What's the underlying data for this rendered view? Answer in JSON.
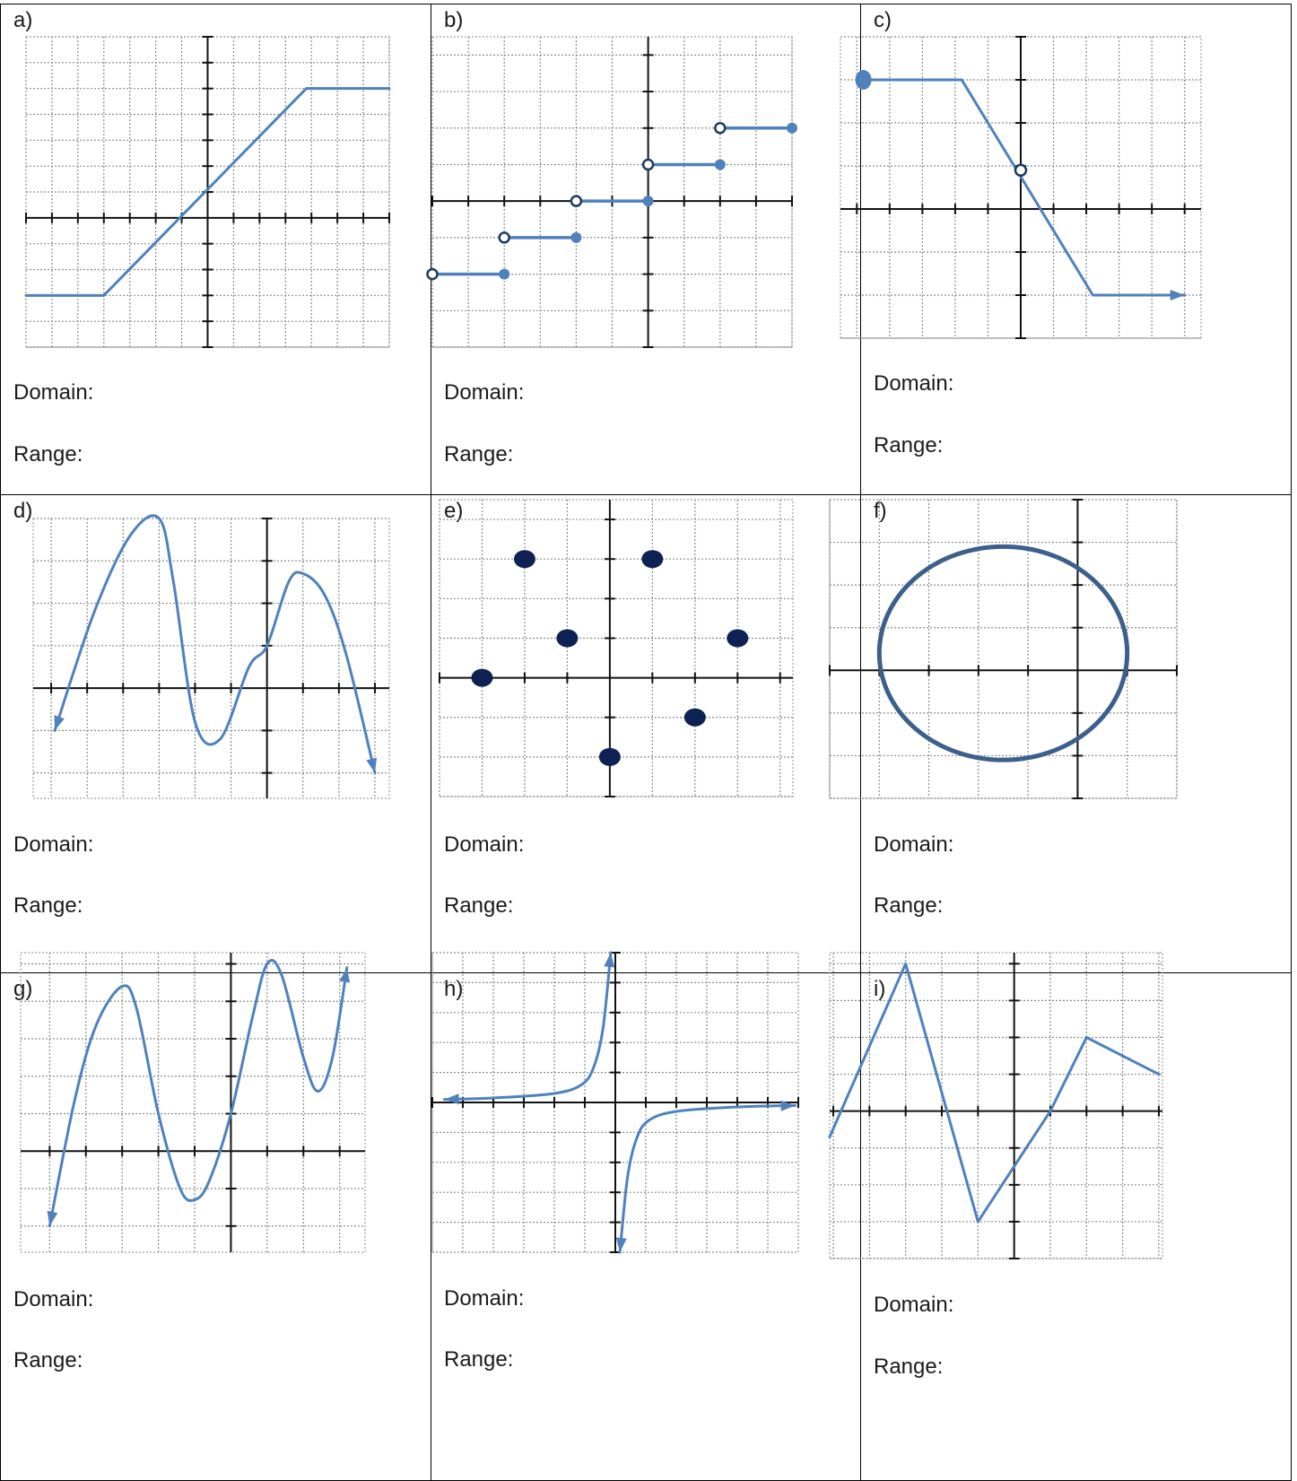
{
  "worksheet": {
    "domain_label": "Domain:",
    "range_label": "Range:",
    "colors": {
      "curve": "#4f81bd",
      "dark_point": "#0d2153",
      "circle": "#3c5f8c",
      "open_ring": "#1f3a5c"
    },
    "problems": [
      {
        "letter": "a)",
        "chart_data": {
          "type": "line",
          "xlim": [
            -7,
            7
          ],
          "ylim": [
            -5,
            7
          ],
          "grid": true,
          "series": [
            {
              "points": [
                [
                  -7,
                  -3
                ],
                [
                  -4,
                  -3
                ],
                [
                  3.8,
                  5
                ],
                [
                  7,
                  5
                ]
              ]
            }
          ]
        }
      },
      {
        "letter": "b)",
        "chart_data": {
          "type": "step",
          "xlim": [
            -6,
            4
          ],
          "ylim": [
            -4,
            4.5
          ],
          "grid": true,
          "steps": [
            {
              "x": [
                -6,
                -4
              ],
              "y": -2,
              "open_left": true,
              "closed_right": true
            },
            {
              "x": [
                -4,
                -2
              ],
              "y": -1,
              "open_left": true,
              "closed_right": true
            },
            {
              "x": [
                -2,
                0
              ],
              "y": 0,
              "open_left": true,
              "closed_right": true
            },
            {
              "x": [
                0,
                2
              ],
              "y": 1,
              "open_left": true,
              "closed_right": true
            },
            {
              "x": [
                2,
                4
              ],
              "y": 2,
              "open_left": true,
              "closed_right": true
            }
          ]
        }
      },
      {
        "letter": "c)",
        "chart_data": {
          "type": "line",
          "xlim": [
            -5.5,
            5.5
          ],
          "ylim": [
            -3,
            4
          ],
          "grid": true,
          "series": [
            {
              "points": [
                [
                  -4.8,
                  3
                ],
                [
                  -1.8,
                  3
                ],
                [
                  2.2,
                  -2
                ],
                [
                  5.0,
                  -2
                ]
              ],
              "end_arrow": true
            }
          ],
          "closed_points": [
            [
              -4.8,
              3
            ]
          ],
          "open_points": [
            [
              0,
              0.9
            ]
          ]
        }
      },
      {
        "letter": "d)",
        "chart_data": {
          "type": "line",
          "xlim": [
            -6.5,
            3.4
          ],
          "ylim": [
            -2.6,
            4
          ],
          "grid": true,
          "series": [
            {
              "points": [
                [
                  -5.9,
                  -1
                ],
                [
                  -4.8,
                  1.8
                ],
                [
                  -3.8,
                  3.6
                ],
                [
                  -3.0,
                  4.0
                ],
                [
                  -2.6,
                  2.5
                ],
                [
                  -2.0,
                  -0.8
                ],
                [
                  -1.3,
                  -1.2
                ],
                [
                  -0.5,
                  0.5
                ],
                [
                  0,
                  1.0
                ],
                [
                  0.6,
                  2.5
                ],
                [
                  1.0,
                  2.7
                ],
                [
                  1.6,
                  2.2
                ],
                [
                  2.2,
                  0.8
                ],
                [
                  3.0,
                  -2.0
                ]
              ],
              "start_arrow": true,
              "end_arrow": true
            }
          ]
        }
      },
      {
        "letter": "e)",
        "chart_data": {
          "type": "scatter",
          "xlim": [
            -4,
            4.3
          ],
          "ylim": [
            -3,
            4.5
          ],
          "grid": true,
          "points": [
            [
              -3,
              0
            ],
            [
              -2,
              3
            ],
            [
              -1,
              1
            ],
            [
              1,
              3
            ],
            [
              3,
              1
            ],
            [
              2,
              -1
            ],
            [
              0,
              -2
            ]
          ]
        }
      },
      {
        "letter": "f)",
        "chart_data": {
          "type": "circle",
          "xlim": [
            -5,
            2
          ],
          "ylim": [
            -3,
            4
          ],
          "grid": true,
          "center": [
            -1.5,
            0.4
          ],
          "radius": 2.5
        }
      },
      {
        "letter": "g)",
        "chart_data": {
          "type": "line",
          "xlim": [
            -5.8,
            3.7
          ],
          "ylim": [
            -2.7,
            5.3
          ],
          "grid": true,
          "series": [
            {
              "points": [
                [
                  -5,
                  -2
                ],
                [
                  -4.3,
                  1.4
                ],
                [
                  -3.7,
                  3.4
                ],
                [
                  -3.0,
                  4.4
                ],
                [
                  -2.6,
                  3.8
                ],
                [
                  -2.0,
                  1.0
                ],
                [
                  -1.4,
                  -1.0
                ],
                [
                  -1.0,
                  -1.3
                ],
                [
                  -0.6,
                  -0.8
                ],
                [
                  0,
                  1.0
                ],
                [
                  0.6,
                  3.6
                ],
                [
                  1.0,
                  5.0
                ],
                [
                  1.4,
                  4.7
                ],
                [
                  2.0,
                  2.5
                ],
                [
                  2.4,
                  1.6
                ],
                [
                  2.8,
                  2.5
                ],
                [
                  3.2,
                  4.9
                ]
              ],
              "start_arrow": true,
              "end_arrow": true
            }
          ]
        }
      },
      {
        "letter": "h)",
        "chart_data": {
          "type": "line",
          "xlim": [
            -6,
            6
          ],
          "ylim": [
            -5,
            5
          ],
          "grid": true,
          "series": [
            {
              "points": [
                [
                  -5.6,
                  0.1
                ],
                [
                  -4,
                  0.15
                ],
                [
                  -2,
                  0.3
                ],
                [
                  -1.1,
                  0.6
                ],
                [
                  -0.7,
                  1.2
                ],
                [
                  -0.4,
                  2.5
                ],
                [
                  -0.15,
                  5.0
                ]
              ],
              "start_arrow": true,
              "end_arrow": true
            },
            {
              "points": [
                [
                  0.15,
                  -5.0
                ],
                [
                  0.4,
                  -2.5
                ],
                [
                  0.7,
                  -1.2
                ],
                [
                  1.1,
                  -0.6
                ],
                [
                  2,
                  -0.3
                ],
                [
                  4,
                  -0.15
                ],
                [
                  5.9,
                  -0.1
                ]
              ],
              "start_arrow": true,
              "end_arrow": true
            }
          ]
        }
      },
      {
        "letter": "i)",
        "chart_data": {
          "type": "line",
          "xlim": [
            -5.1,
            4.1
          ],
          "ylim": [
            -4,
            4.3
          ],
          "grid": true,
          "series": [
            {
              "points": [
                [
                  -5.1,
                  -0.7
                ],
                [
                  -3,
                  4
                ],
                [
                  -1,
                  -3
                ],
                [
                  1,
                  0
                ],
                [
                  2,
                  2
                ],
                [
                  4,
                  1
                ]
              ]
            }
          ]
        }
      }
    ]
  }
}
